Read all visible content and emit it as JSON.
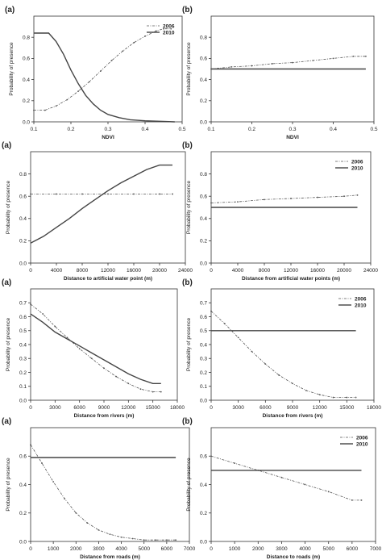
{
  "chart_data": [
    {
      "type": "line",
      "panel": "(a)",
      "xlabel": "NDVI",
      "ylabel": "Probability of presence",
      "xlim": [
        0.1,
        0.5
      ],
      "ylim": [
        0,
        1.0
      ],
      "xticks": [
        "0.1",
        "0.2",
        "0.3",
        "0.4",
        "0.5"
      ],
      "yticks": [
        "0.0",
        "0.2",
        "0.4",
        "0.6",
        "0.8"
      ],
      "legend": [
        "2006",
        "2010"
      ],
      "legend_position": "top-right",
      "series": [
        {
          "name": "2006",
          "style": "dash-dot-markers",
          "x": [
            0.1,
            0.13,
            0.16,
            0.19,
            0.22,
            0.25,
            0.28,
            0.31,
            0.34,
            0.37,
            0.4,
            0.43,
            0.45,
            0.47
          ],
          "y": [
            0.11,
            0.11,
            0.15,
            0.21,
            0.29,
            0.38,
            0.48,
            0.58,
            0.67,
            0.75,
            0.81,
            0.86,
            0.88,
            0.88
          ]
        },
        {
          "name": "2010",
          "style": "solid",
          "x": [
            0.1,
            0.14,
            0.16,
            0.18,
            0.2,
            0.22,
            0.24,
            0.26,
            0.28,
            0.3,
            0.33,
            0.36,
            0.4,
            0.44,
            0.48
          ],
          "y": [
            0.84,
            0.84,
            0.76,
            0.64,
            0.49,
            0.36,
            0.25,
            0.17,
            0.11,
            0.07,
            0.04,
            0.02,
            0.01,
            0.005,
            0.0
          ]
        }
      ]
    },
    {
      "type": "line",
      "panel": "(b)",
      "xlabel": "NDVI",
      "ylabel": "Probability of presence",
      "xlim": [
        0.1,
        0.5
      ],
      "ylim": [
        0,
        1.0
      ],
      "xticks": [
        "0.1",
        "0.2",
        "0.3",
        "0.4",
        "0.5"
      ],
      "yticks": [
        "0.0",
        "0.2",
        "0.4",
        "0.6",
        "0.8"
      ],
      "legend": [],
      "series": [
        {
          "name": "2006",
          "style": "dash-dot-markers",
          "x": [
            0.1,
            0.15,
            0.2,
            0.25,
            0.3,
            0.35,
            0.4,
            0.45,
            0.48
          ],
          "y": [
            0.5,
            0.52,
            0.53,
            0.55,
            0.56,
            0.58,
            0.6,
            0.62,
            0.62
          ]
        },
        {
          "name": "2010",
          "style": "solid",
          "x": [
            0.1,
            0.48
          ],
          "y": [
            0.5,
            0.5
          ]
        }
      ]
    },
    {
      "type": "line",
      "panel": "(a)",
      "xlabel": "Distance to artificial water point (m)",
      "ylabel": "Probability of presence",
      "xlim": [
        0,
        24000
      ],
      "ylim": [
        0,
        1.0
      ],
      "xticks": [
        "0",
        "4000",
        "8000",
        "12000",
        "16000",
        "20000",
        "24000"
      ],
      "yticks": [
        "0.0",
        "0.2",
        "0.4",
        "0.6",
        "0.8"
      ],
      "legend": [],
      "series": [
        {
          "name": "2006",
          "style": "dash-dot-markers",
          "x": [
            0,
            4000,
            8000,
            12000,
            16000,
            20000,
            22000
          ],
          "y": [
            0.62,
            0.62,
            0.62,
            0.62,
            0.62,
            0.62,
            0.62
          ]
        },
        {
          "name": "2010",
          "style": "solid",
          "x": [
            0,
            2000,
            4000,
            6000,
            8000,
            10000,
            12000,
            14000,
            16000,
            18000,
            20000,
            22000
          ],
          "y": [
            0.18,
            0.24,
            0.32,
            0.4,
            0.49,
            0.57,
            0.65,
            0.72,
            0.78,
            0.84,
            0.88,
            0.88
          ]
        }
      ]
    },
    {
      "type": "line",
      "panel": "(b)",
      "xlabel": "Distance from artificial water points (m)",
      "ylabel": "Probability of presence",
      "xlim": [
        0,
        24000
      ],
      "ylim": [
        0,
        1.0
      ],
      "xticks": [
        "0",
        "4000",
        "8000",
        "12000",
        "16000",
        "20000",
        "24000"
      ],
      "yticks": [
        "0.0",
        "0.2",
        "0.4",
        "0.6",
        "0.8"
      ],
      "legend": [
        "2006",
        "2010"
      ],
      "legend_position": "top-right",
      "series": [
        {
          "name": "2006",
          "style": "dash-dot-markers",
          "x": [
            0,
            4000,
            8000,
            12000,
            16000,
            20000,
            22000
          ],
          "y": [
            0.54,
            0.55,
            0.57,
            0.58,
            0.59,
            0.6,
            0.61
          ]
        },
        {
          "name": "2010",
          "style": "solid",
          "x": [
            0,
            22000
          ],
          "y": [
            0.5,
            0.5
          ]
        }
      ]
    },
    {
      "type": "line",
      "panel": "(a)",
      "xlabel": "Distance from rivers (m)",
      "ylabel": "Probability of presence",
      "xlim": [
        0,
        18000
      ],
      "ylim": [
        0,
        0.8
      ],
      "xticks": [
        "0",
        "3000",
        "6000",
        "9000",
        "12000",
        "15000",
        "18000"
      ],
      "yticks": [
        "0.0",
        "0.1",
        "0.2",
        "0.3",
        "0.4",
        "0.5",
        "0.6",
        "0.7"
      ],
      "legend": [],
      "series": [
        {
          "name": "2006",
          "style": "dash-dot-markers",
          "x": [
            0,
            1500,
            3000,
            4500,
            6000,
            7500,
            9000,
            10500,
            12000,
            13500,
            15000,
            16000
          ],
          "y": [
            0.69,
            0.62,
            0.53,
            0.45,
            0.37,
            0.3,
            0.23,
            0.17,
            0.12,
            0.08,
            0.06,
            0.06
          ]
        },
        {
          "name": "2010",
          "style": "solid",
          "x": [
            0,
            1500,
            3000,
            4500,
            6000,
            7500,
            9000,
            10500,
            12000,
            13500,
            15000,
            16000
          ],
          "y": [
            0.62,
            0.56,
            0.49,
            0.44,
            0.39,
            0.34,
            0.29,
            0.24,
            0.19,
            0.15,
            0.12,
            0.12
          ]
        }
      ]
    },
    {
      "type": "line",
      "panel": "(b)",
      "xlabel": "Distance from rivers (m)",
      "ylabel": "Probability of presence",
      "xlim": [
        0,
        18000
      ],
      "ylim": [
        0,
        0.8
      ],
      "xticks": [
        "0",
        "3000",
        "6000",
        "9000",
        "12000",
        "15000",
        "18000"
      ],
      "yticks": [
        "0.0",
        "0.1",
        "0.2",
        "0.3",
        "0.4",
        "0.5",
        "0.6",
        "0.7"
      ],
      "legend": [
        "2006",
        "2010"
      ],
      "legend_position": "top-right",
      "series": [
        {
          "name": "2006",
          "style": "dash-dot-markers",
          "x": [
            0,
            1500,
            3000,
            4500,
            6000,
            7500,
            9000,
            10500,
            12000,
            13500,
            15000,
            16000
          ],
          "y": [
            0.64,
            0.55,
            0.45,
            0.35,
            0.26,
            0.18,
            0.12,
            0.07,
            0.04,
            0.02,
            0.02,
            0.02
          ]
        },
        {
          "name": "2010",
          "style": "solid",
          "x": [
            0,
            16000
          ],
          "y": [
            0.5,
            0.5
          ]
        }
      ]
    },
    {
      "type": "line",
      "panel": "(a)",
      "xlabel": "Distance from roads (m)",
      "ylabel": "Probability of presence",
      "xlim": [
        0,
        7000
      ],
      "ylim": [
        0,
        0.8
      ],
      "xticks": [
        "0",
        "1000",
        "2000",
        "3000",
        "4000",
        "5000",
        "6000",
        "7000"
      ],
      "yticks": [
        "0.0",
        "0.2",
        "0.4",
        "0.6"
      ],
      "legend": [],
      "series": [
        {
          "name": "2006",
          "style": "dash-dot-markers",
          "x": [
            0,
            500,
            1000,
            1500,
            2000,
            2500,
            3000,
            3500,
            4000,
            4500,
            5000,
            5500,
            6000,
            6400
          ],
          "y": [
            0.68,
            0.55,
            0.42,
            0.3,
            0.2,
            0.13,
            0.08,
            0.05,
            0.03,
            0.02,
            0.01,
            0.01,
            0.01,
            0.01
          ]
        },
        {
          "name": "2010",
          "style": "solid",
          "x": [
            0,
            6400
          ],
          "y": [
            0.59,
            0.59
          ]
        }
      ]
    },
    {
      "type": "line",
      "panel": "(b)",
      "xlabel": "Distance to roads (m)",
      "ylabel": "Probability of presence",
      "xlim": [
        0,
        7000
      ],
      "ylim": [
        0,
        0.8
      ],
      "xticks": [
        "0",
        "1000",
        "2000",
        "3000",
        "4000",
        "5000",
        "6000",
        "7000"
      ],
      "yticks": [
        "0.0",
        "0.2",
        "0.4",
        "0.6"
      ],
      "legend": [
        "2006",
        "2010"
      ],
      "legend_position": "top-right",
      "series": [
        {
          "name": "2006",
          "style": "dash-dot-markers",
          "x": [
            0,
            1000,
            2000,
            3000,
            4000,
            5000,
            6000,
            6400
          ],
          "y": [
            0.6,
            0.55,
            0.5,
            0.45,
            0.4,
            0.35,
            0.29,
            0.29
          ]
        },
        {
          "name": "2010",
          "style": "solid",
          "x": [
            0,
            6400
          ],
          "y": [
            0.5,
            0.5
          ]
        }
      ]
    }
  ]
}
